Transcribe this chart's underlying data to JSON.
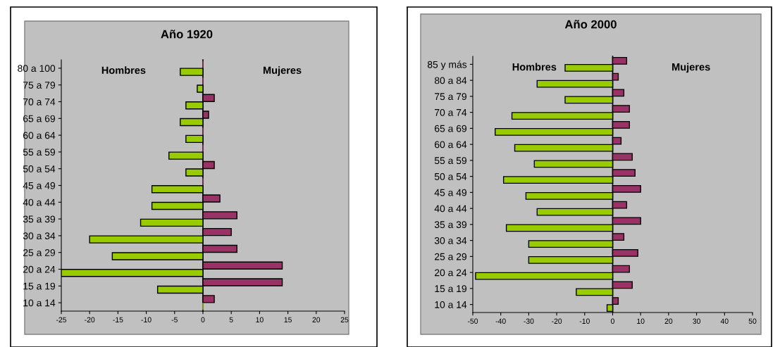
{
  "chart_data": [
    {
      "type": "bar",
      "title": "Año 1920",
      "orientation": "horizontal",
      "categories": [
        "80 a 100",
        "75 a 79",
        "70 a 74",
        "65 a 69",
        "60 a 64",
        "55 a 59",
        "50 a 54",
        "45 a 49",
        "40 a 44",
        "35 a 39",
        "30 a 34",
        "25 a 29",
        "20 a 24",
        "15 a 19",
        "10 a 14"
      ],
      "series": [
        {
          "color": "#993366",
          "values": [
            0,
            0,
            2,
            1,
            0,
            0,
            2,
            0,
            3,
            6,
            5,
            6,
            14,
            14,
            2
          ]
        },
        {
          "color": "#99cc00",
          "values": [
            -4,
            -1,
            -3,
            -4,
            -3,
            -6,
            -3,
            -9,
            -9,
            -11,
            -20,
            -16,
            -25,
            -8,
            0
          ]
        }
      ],
      "annotations": [
        "Hombres",
        "Mujeres"
      ],
      "xlim": [
        -25,
        25
      ],
      "xticks": [
        -25,
        -20,
        -15,
        -10,
        -5,
        0,
        5,
        10,
        15,
        20,
        25
      ]
    },
    {
      "type": "bar",
      "title": "Año 2000",
      "orientation": "horizontal",
      "categories": [
        "85 y más",
        "80 a 84",
        "75 a 79",
        "70 a 74",
        "65 a 69",
        "60 a 64",
        "55 a 59",
        "50 a 54",
        "45 a 49",
        "40 a 44",
        "35 a 39",
        "30 a 34",
        "25 a 29",
        "20 a 24",
        "15 a 19",
        "10 a 14"
      ],
      "series": [
        {
          "color": "#993366",
          "values": [
            5,
            2,
            4,
            6,
            6,
            3,
            7,
            8,
            10,
            5,
            10,
            4,
            9,
            6,
            7,
            2
          ]
        },
        {
          "color": "#99cc00",
          "values": [
            -17,
            -27,
            -17,
            -36,
            -42,
            -35,
            -28,
            -39,
            -31,
            -27,
            -38,
            -30,
            -30,
            -49,
            -13,
            -2
          ]
        }
      ],
      "annotations": [
        "Hombres",
        "Mujeres"
      ],
      "xlim": [
        -50,
        50
      ],
      "xticks": [
        -50,
        -40,
        -30,
        -20,
        -10,
        0,
        10,
        20,
        30,
        40,
        50
      ]
    }
  ]
}
